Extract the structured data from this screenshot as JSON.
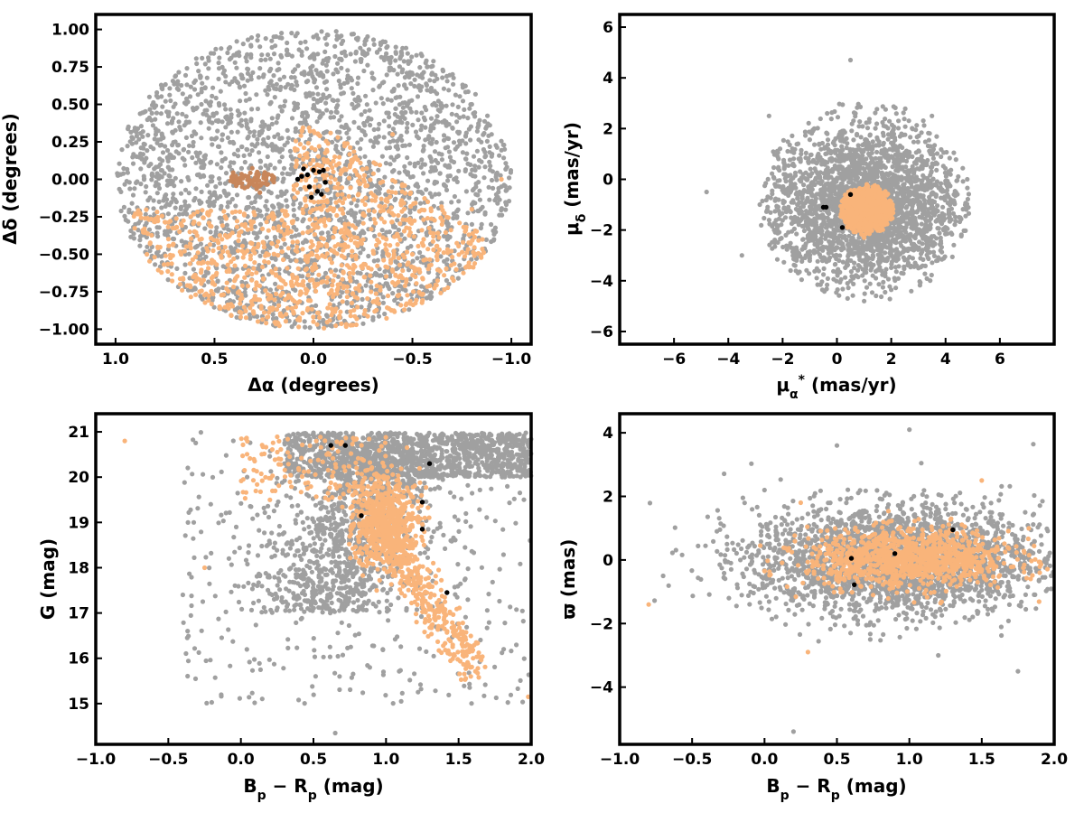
{
  "colors": {
    "field": "#a0a0a0",
    "members": "#f9b47a",
    "stream": "#c8865a",
    "core": "#000000"
  },
  "chart_data": [
    {
      "type": "scatter",
      "xlabel": "Δα (degrees)",
      "ylabel": "Δδ (degrees)",
      "xlim": [
        1.1,
        -1.1
      ],
      "ylim": [
        -1.1,
        1.1
      ],
      "x_reversed": true,
      "xticks": [
        1.0,
        0.5,
        0.0,
        -0.5,
        -1.0
      ],
      "xtick_labels": [
        "1.0",
        "0.5",
        "0.0",
        "−0.5",
        "−1.0"
      ],
      "yticks": [
        -1.0,
        -0.75,
        -0.5,
        -0.25,
        0.0,
        0.25,
        0.5,
        0.75,
        1.0
      ],
      "ytick_labels": [
        "−1.00",
        "−0.75",
        "−0.50",
        "−0.25",
        "0.00",
        "0.25",
        "0.50",
        "0.75",
        "1.00"
      ],
      "grid": false,
      "series": [
        {
          "color_key": "field",
          "description_points": [
            [
              0.0,
              0.95
            ],
            [
              0.8,
              0.4
            ],
            [
              -0.9,
              0.3
            ],
            [
              0.9,
              -0.3
            ],
            [
              -0.5,
              0.7
            ],
            [
              0.4,
              -0.6
            ],
            [
              0.6,
              0.6
            ],
            [
              -0.8,
              0.5
            ]
          ]
        },
        {
          "color_key": "members",
          "description_points": [
            [
              -0.5,
              -0.5
            ],
            [
              -0.2,
              -0.6
            ],
            [
              -0.8,
              -0.2
            ],
            [
              -0.4,
              0.3
            ],
            [
              0.3,
              -0.8
            ],
            [
              0.0,
              -0.95
            ],
            [
              -0.95,
              0.0
            ],
            [
              0.15,
              -0.4
            ]
          ]
        },
        {
          "color_key": "stream",
          "description_points": [
            [
              0.4,
              -0.02
            ],
            [
              0.33,
              0.02
            ],
            [
              0.25,
              0.03
            ],
            [
              0.3,
              -0.04
            ],
            [
              0.2,
              0.01
            ],
            [
              0.36,
              -0.05
            ]
          ]
        },
        {
          "color_key": "core",
          "description_points": [
            [
              0.05,
              0.07
            ],
            [
              0.0,
              0.06
            ],
            [
              -0.03,
              0.05
            ],
            [
              0.08,
              0.0
            ],
            [
              0.02,
              -0.05
            ],
            [
              -0.04,
              -0.1
            ],
            [
              0.01,
              -0.12
            ],
            [
              -0.06,
              -0.02
            ],
            [
              0.06,
              0.02
            ],
            [
              -0.02,
              -0.08
            ],
            [
              0.03,
              0.03
            ],
            [
              -0.05,
              0.06
            ]
          ]
        }
      ]
    },
    {
      "type": "scatter",
      "xlabel": "μα* (mas/yr)",
      "ylabel": "μδ (mas/yr)",
      "xlim": [
        -8,
        8
      ],
      "ylim": [
        -6.5,
        6.5
      ],
      "xticks": [
        -6,
        -4,
        -2,
        0,
        2,
        4,
        6
      ],
      "xtick_labels": [
        "−6",
        "−4",
        "−2",
        "0",
        "2",
        "4",
        "6"
      ],
      "yticks": [
        -6,
        -4,
        -2,
        0,
        2,
        4,
        6
      ],
      "ytick_labels": [
        "−6",
        "−4",
        "−2",
        "0",
        "2",
        "4",
        "6"
      ],
      "grid": false,
      "series": [
        {
          "color_key": "field",
          "description_points": [
            [
              0.5,
              4.7
            ],
            [
              -4.8,
              -0.5
            ],
            [
              4.8,
              0.0
            ],
            [
              1.0,
              -4.8
            ],
            [
              -2.5,
              2.5
            ],
            [
              3.5,
              2.5
            ],
            [
              -3.5,
              -3.0
            ],
            [
              3.0,
              -3.5
            ]
          ]
        },
        {
          "color_key": "members",
          "description_points": [
            [
              1.0,
              -1.2
            ],
            [
              0.3,
              -1.0
            ],
            [
              1.8,
              -1.3
            ],
            [
              1.1,
              -0.2
            ],
            [
              1.0,
              -2.3
            ],
            [
              0.5,
              -1.8
            ]
          ]
        },
        {
          "color_key": "core",
          "description_points": [
            [
              -0.5,
              -1.1
            ],
            [
              -0.4,
              -1.1
            ],
            [
              0.2,
              -1.9
            ],
            [
              0.5,
              -0.6
            ]
          ]
        }
      ]
    },
    {
      "type": "scatter",
      "xlabel": "Bp − Rp (mag)",
      "ylabel": "G (mag)",
      "xlim": [
        -1.0,
        2.0
      ],
      "ylim": [
        14.1,
        21.4
      ],
      "xticks": [
        -1.0,
        -0.5,
        0.0,
        0.5,
        1.0,
        1.5,
        2.0
      ],
      "xtick_labels": [
        "−1.0",
        "−0.5",
        "0.0",
        "0.5",
        "1.0",
        "1.5",
        "2.0"
      ],
      "yticks": [
        15,
        16,
        17,
        18,
        19,
        20,
        21
      ],
      "ytick_labels": [
        "15",
        "16",
        "17",
        "18",
        "19",
        "20",
        "21"
      ],
      "grid": false,
      "series": [
        {
          "color_key": "field",
          "description_points": [
            [
              0.6,
              20.8
            ],
            [
              1.5,
              20.5
            ],
            [
              1.0,
              19.0
            ],
            [
              0.8,
              18.0
            ],
            [
              1.8,
              20.0
            ],
            [
              0.3,
              20.3
            ],
            [
              0.65,
              14.35
            ],
            [
              -0.4,
              17.4
            ]
          ]
        },
        {
          "color_key": "members",
          "description_points": [
            [
              -0.8,
              20.8
            ],
            [
              1.0,
              19.0
            ],
            [
              1.2,
              18.0
            ],
            [
              1.4,
              17.0
            ],
            [
              1.6,
              16.0
            ],
            [
              1.98,
              15.15
            ],
            [
              0.2,
              19.5
            ],
            [
              -0.25,
              18.0
            ]
          ]
        },
        {
          "color_key": "core",
          "description_points": [
            [
              0.62,
              20.7
            ],
            [
              0.72,
              20.7
            ],
            [
              1.3,
              20.3
            ],
            [
              0.83,
              19.15
            ],
            [
              1.25,
              19.45
            ],
            [
              1.25,
              18.85
            ],
            [
              1.42,
              17.45
            ]
          ]
        }
      ]
    },
    {
      "type": "scatter",
      "xlabel": "Bp − Rp (mag)",
      "ylabel": "ϖ (mas)",
      "xlim": [
        -1.0,
        2.0
      ],
      "ylim": [
        -5.8,
        4.6
      ],
      "xticks": [
        -1.0,
        -0.5,
        0.0,
        0.5,
        1.0,
        1.5,
        2.0
      ],
      "xtick_labels": [
        "−1.0",
        "−0.5",
        "0.0",
        "0.5",
        "1.0",
        "1.5",
        "2.0"
      ],
      "yticks": [
        -4,
        -2,
        0,
        2,
        4
      ],
      "ytick_labels": [
        "−4",
        "−2",
        "0",
        "2",
        "4"
      ],
      "grid": false,
      "series": [
        {
          "color_key": "field",
          "description_points": [
            [
              1.0,
              4.1
            ],
            [
              0.2,
              -5.4
            ],
            [
              -0.7,
              -0.5
            ],
            [
              1.8,
              1.5
            ],
            [
              0.5,
              3.6
            ],
            [
              1.2,
              -3.0
            ],
            [
              0.0,
              2.2
            ],
            [
              1.75,
              -3.5
            ]
          ]
        },
        {
          "color_key": "members",
          "description_points": [
            [
              -0.8,
              -1.4
            ],
            [
              1.0,
              0.0
            ],
            [
              0.5,
              0.3
            ],
            [
              1.5,
              0.1
            ],
            [
              0.25,
              1.8
            ],
            [
              1.5,
              2.5
            ],
            [
              0.3,
              -2.9
            ],
            [
              1.9,
              -0.4
            ]
          ]
        },
        {
          "color_key": "core",
          "description_points": [
            [
              1.3,
              0.95
            ],
            [
              0.62,
              -0.78
            ],
            [
              0.6,
              0.05
            ],
            [
              0.9,
              0.2
            ]
          ]
        }
      ]
    }
  ]
}
